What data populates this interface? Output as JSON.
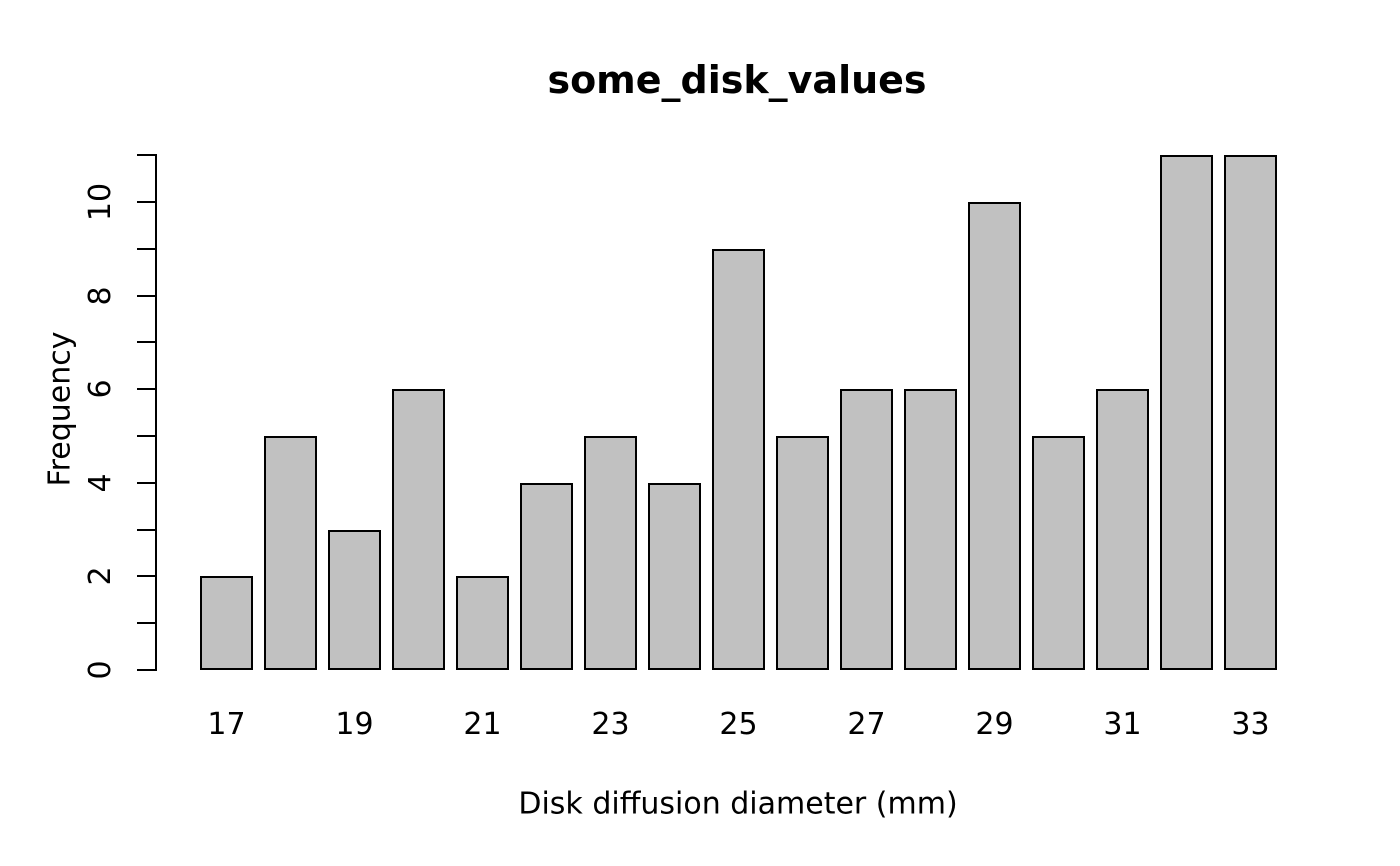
{
  "chart_data": {
    "type": "bar",
    "title": "some_disk_values",
    "xlabel": "Disk diffusion diameter (mm)",
    "ylabel": "Frequency",
    "categories": [
      17,
      18,
      19,
      20,
      21,
      22,
      23,
      24,
      25,
      26,
      27,
      28,
      29,
      30,
      31,
      32,
      33
    ],
    "values": [
      2,
      5,
      3,
      6,
      2,
      4,
      5,
      4,
      9,
      5,
      6,
      6,
      10,
      5,
      6,
      11,
      11
    ],
    "x_axis": {
      "labeled_ticks": [
        "17",
        "19",
        "21",
        "23",
        "25",
        "27",
        "29",
        "31",
        "33"
      ],
      "label_every": 2,
      "axis_line": false
    },
    "y_axis": {
      "labeled_ticks": [
        "0",
        "2",
        "4",
        "6",
        "8",
        "10"
      ],
      "tick_step": 1,
      "label_step": 2,
      "range": [
        0,
        11
      ],
      "axis_line": true
    },
    "grid": false,
    "legend": null,
    "colors": {
      "bar_fill": "#c1c1c1",
      "bar_border": "#000000",
      "axis": "#000000",
      "text": "#000000",
      "background": "#ffffff"
    }
  }
}
